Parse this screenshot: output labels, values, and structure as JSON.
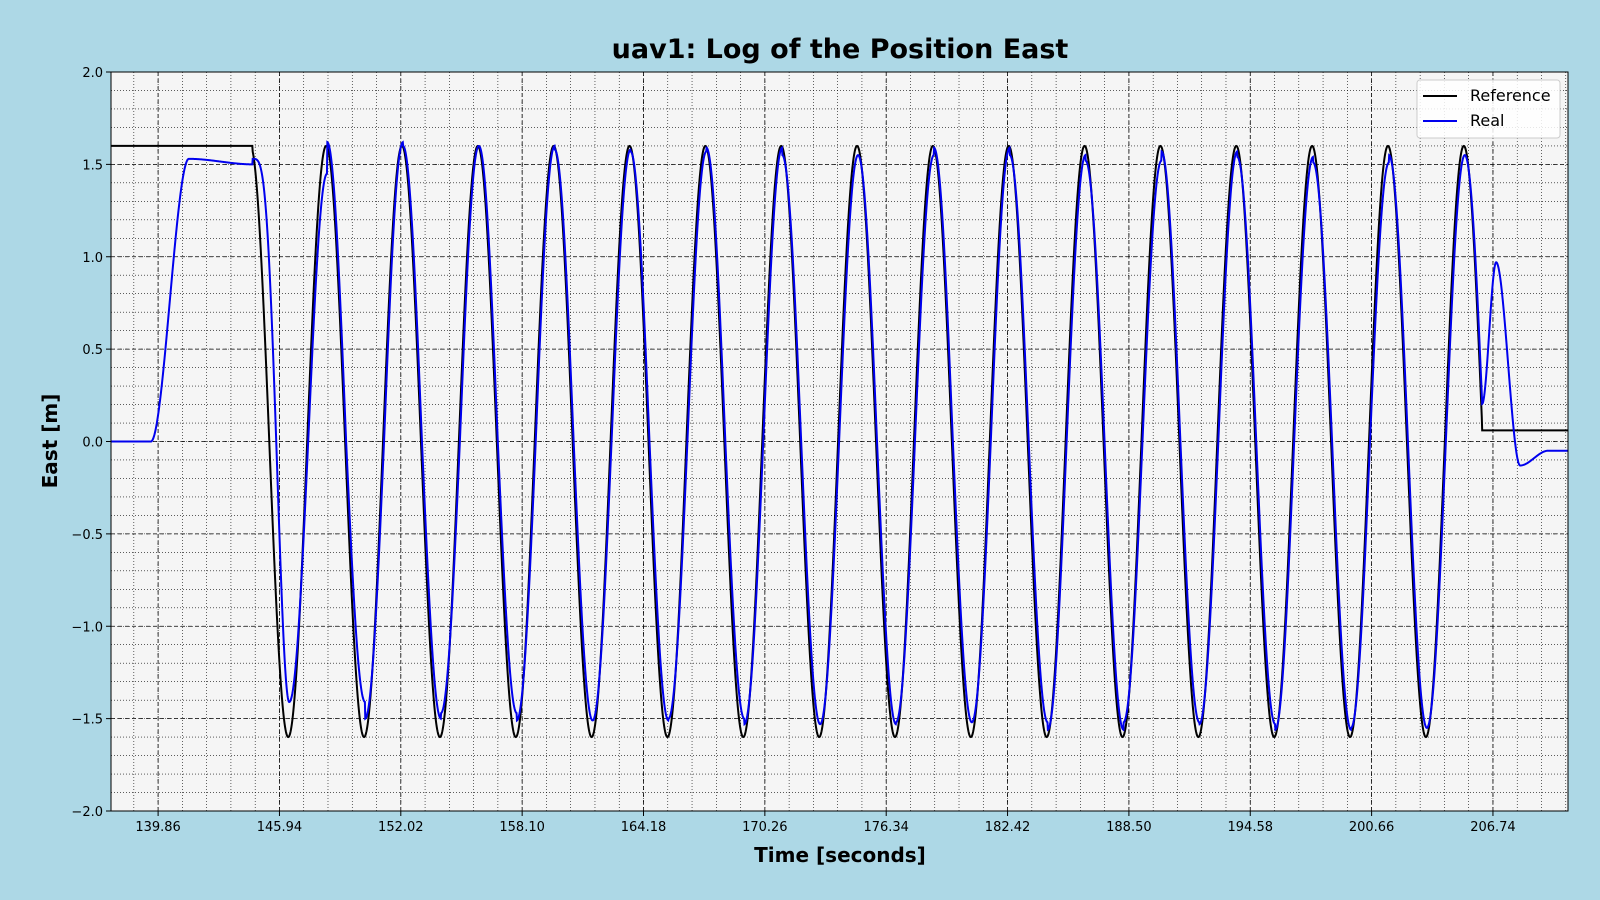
{
  "chart_data": {
    "type": "line",
    "title": "uav1: Log of the Position East",
    "xlabel": "Time [seconds]",
    "ylabel": "East [m]",
    "xlim": [
      137.5,
      210.5
    ],
    "ylim": [
      -2.0,
      2.0
    ],
    "x_ticks": [
      139.86,
      145.94,
      152.02,
      158.1,
      164.18,
      170.26,
      176.34,
      182.42,
      188.5,
      194.58,
      200.66,
      206.74
    ],
    "x_tick_labels": [
      "139.86",
      "145.94",
      "152.02",
      "158.10",
      "164.18",
      "170.26",
      "176.34",
      "182.42",
      "188.50",
      "194.58",
      "200.66",
      "206.74"
    ],
    "y_ticks": [
      -2.0,
      -1.5,
      -1.0,
      -0.5,
      0.0,
      0.5,
      1.0,
      1.5,
      2.0
    ],
    "y_tick_labels": [
      "−2.0",
      "−1.5",
      "−1.0",
      "−0.5",
      "0.0",
      "0.5",
      "1.0",
      "1.5",
      "2.0"
    ],
    "grid": true,
    "minor_grid": true,
    "legend_position": "top-right",
    "reference_params": {
      "hold_until": 144.6,
      "hold_value": 1.6,
      "amplitude": 1.6,
      "period": 3.8,
      "first_trough": 146.38,
      "end_time": 206.2,
      "final_value": 0.06
    },
    "real_params": {
      "initial_value": 0.0,
      "rise_start": 139.5,
      "rise_end": 141.4,
      "plateau_value": 1.53,
      "lag": 0.05,
      "peaks": [
        1.41,
        1.5,
        1.47,
        1.51,
        1.51,
        1.5,
        1.53,
        1.53,
        1.52,
        1.52,
        1.56,
        1.52,
        1.53,
        1.56,
        1.55
      ],
      "troughs": [
        -1.45,
        -1.62,
        -1.6,
        -1.6,
        -1.58,
        -1.57,
        -1.59,
        -1.55,
        -1.55,
        -1.59,
        -1.55,
        -1.52,
        -1.57,
        -1.54,
        -1.51,
        -1.55
      ],
      "overshoot_time": 206.9,
      "overshoot_value": 0.97,
      "undershoot_time": 208.1,
      "undershoot_value": -0.13,
      "final_value": -0.05
    },
    "series": [
      {
        "name": "Reference",
        "color": "#000000"
      },
      {
        "name": "Real",
        "color": "#0000ee"
      }
    ]
  }
}
